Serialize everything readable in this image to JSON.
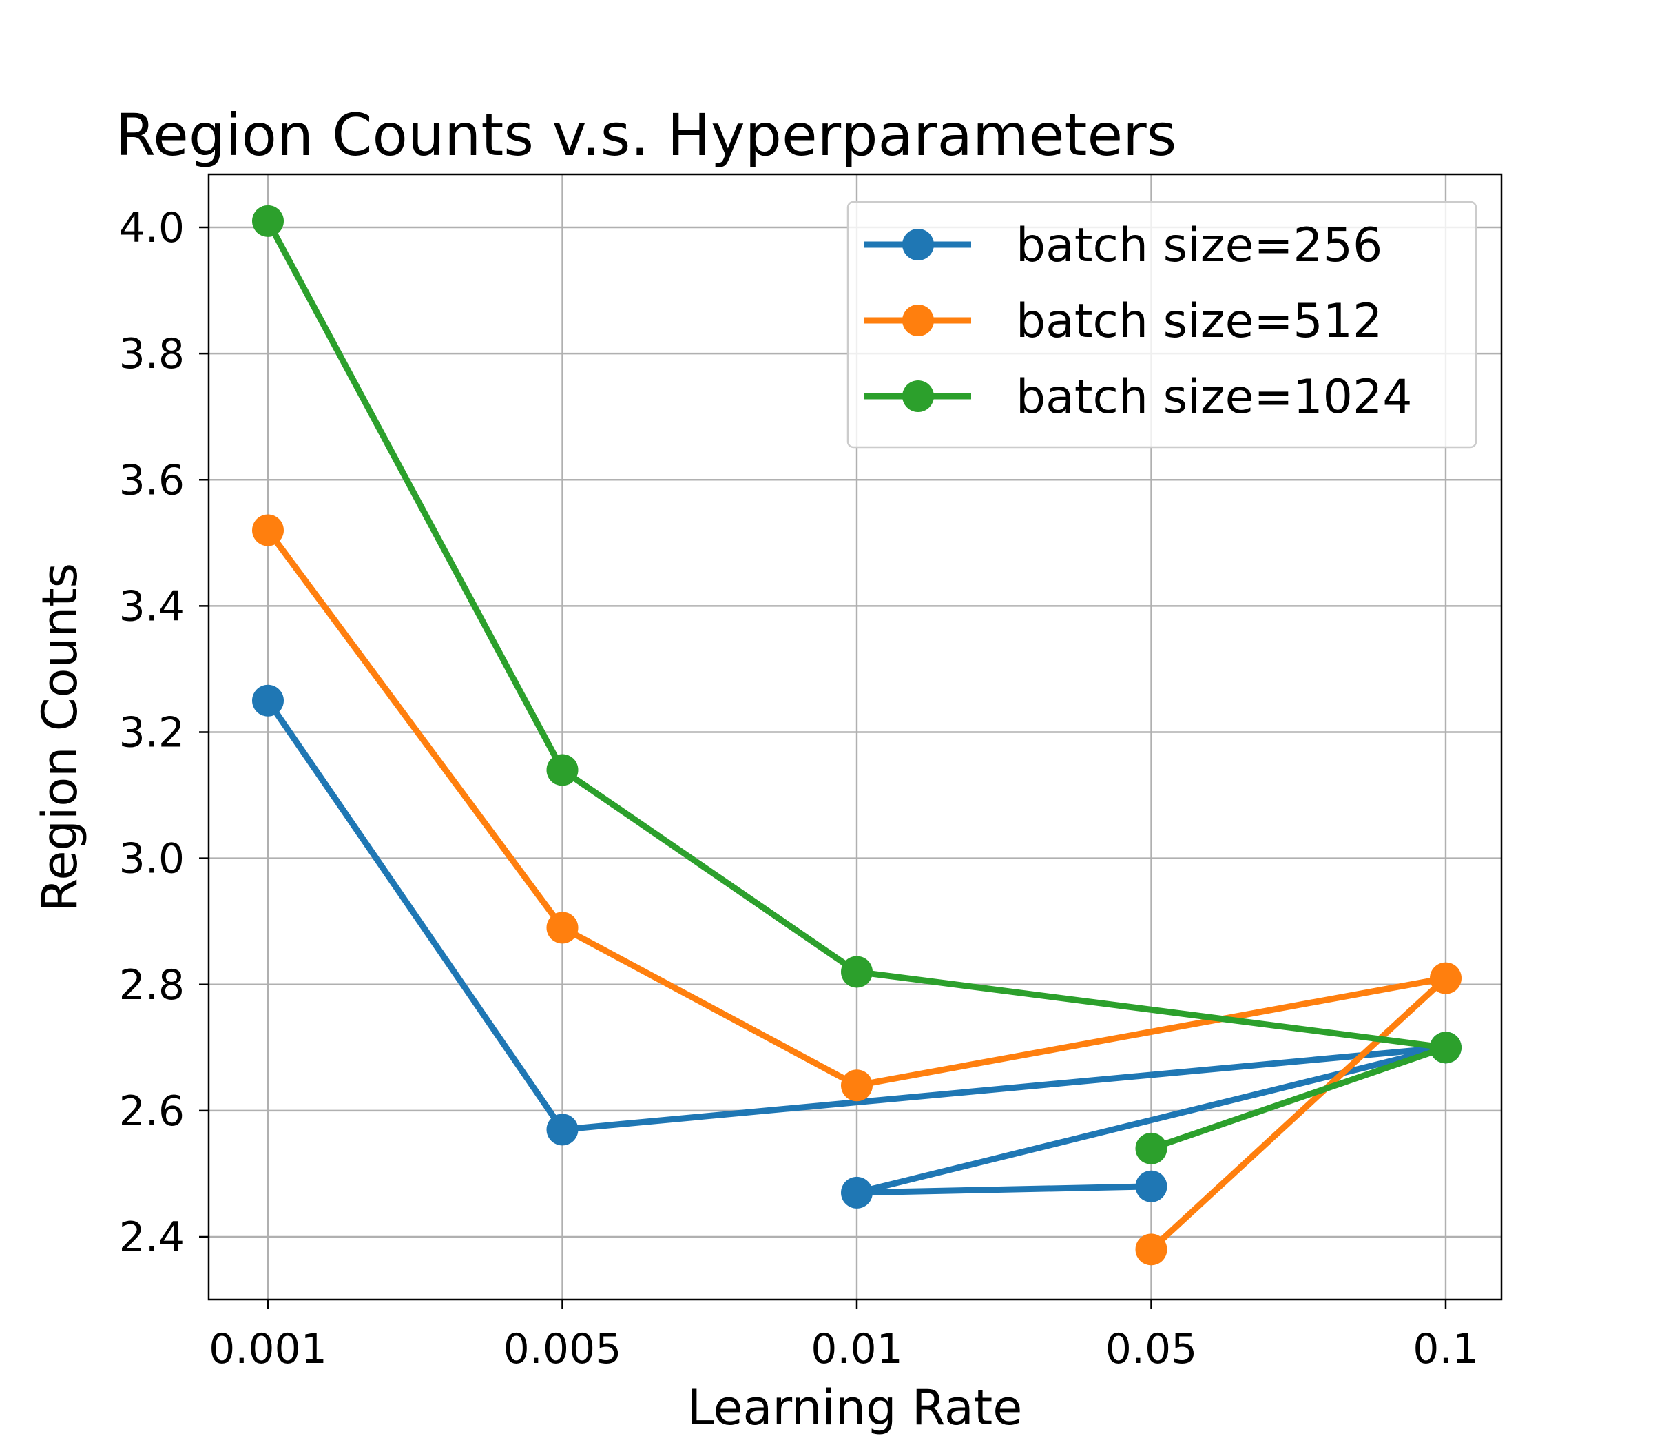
{
  "chart_data": {
    "type": "line",
    "title": "Region Counts v.s. Hyperparameters",
    "xlabel": "Learning Rate",
    "ylabel": "Region Counts",
    "x_categories": [
      "0.001",
      "0.005",
      "0.01",
      "0.05",
      "0.1"
    ],
    "y_ticks": [
      "2.4",
      "2.6",
      "2.8",
      "3.0",
      "3.2",
      "3.4",
      "3.6",
      "3.8",
      "4.0"
    ],
    "ylim": [
      2.3,
      4.1
    ],
    "grid": true,
    "legend_position": "top-right",
    "series": [
      {
        "name": "batch size=256",
        "color": "#1f77b4",
        "points": [
          {
            "x": "0.001",
            "y": 3.25
          },
          {
            "x": "0.005",
            "y": 2.57
          },
          {
            "x": "0.1",
            "y": 2.7
          },
          {
            "x": "0.01",
            "y": 2.47
          },
          {
            "x": "0.05",
            "y": 2.48
          }
        ]
      },
      {
        "name": "batch size=512",
        "color": "#ff7f0e",
        "points": [
          {
            "x": "0.001",
            "y": 3.52
          },
          {
            "x": "0.005",
            "y": 2.89
          },
          {
            "x": "0.01",
            "y": 2.64
          },
          {
            "x": "0.1",
            "y": 2.81
          },
          {
            "x": "0.05",
            "y": 2.38
          }
        ]
      },
      {
        "name": "batch size=1024",
        "color": "#2ca02c",
        "points": [
          {
            "x": "0.001",
            "y": 4.01
          },
          {
            "x": "0.005",
            "y": 3.14
          },
          {
            "x": "0.01",
            "y": 2.82
          },
          {
            "x": "0.1",
            "y": 2.7
          },
          {
            "x": "0.05",
            "y": 2.54
          }
        ]
      }
    ]
  }
}
